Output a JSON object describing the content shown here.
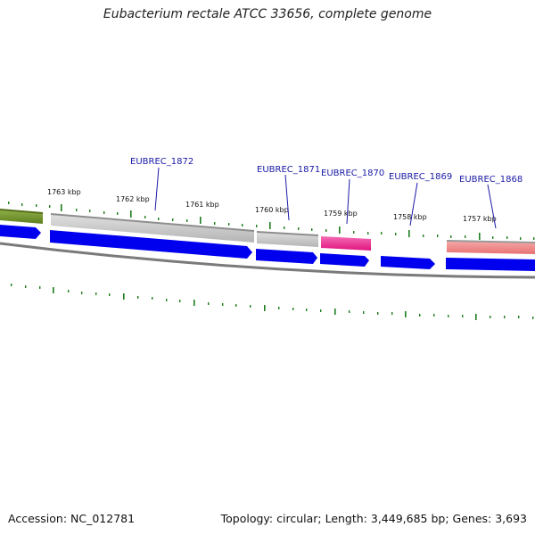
{
  "title": "Eubacterium rectale ATCC 33656, complete genome",
  "footer": {
    "accession": "Accession: NC_012781",
    "summary": "Topology: circular; Length: 3,449,685 bp; Genes: 3,693"
  },
  "colors": {
    "forward_cds": "#0000ee",
    "backbone": "#7a7a7a",
    "gene_label": "#1a1aa6",
    "tick": "#1e7d1e",
    "feature_grey": "#c0c0c0",
    "feature_pink": "#ee1b8c",
    "feature_salmon": "#ee8080",
    "feature_olive": "#6f8f2a"
  },
  "scale_labels": [
    "1763 kbp",
    "1762 kbp",
    "1761 kbp",
    "1760 kbp",
    "1759 kbp",
    "1758 kbp",
    "1757 kbp"
  ],
  "gene_labels": [
    "EUBREC_1872",
    "EUBREC_1871",
    "EUBREC_1870",
    "EUBREC_1869",
    "EUBREC_1868"
  ]
}
